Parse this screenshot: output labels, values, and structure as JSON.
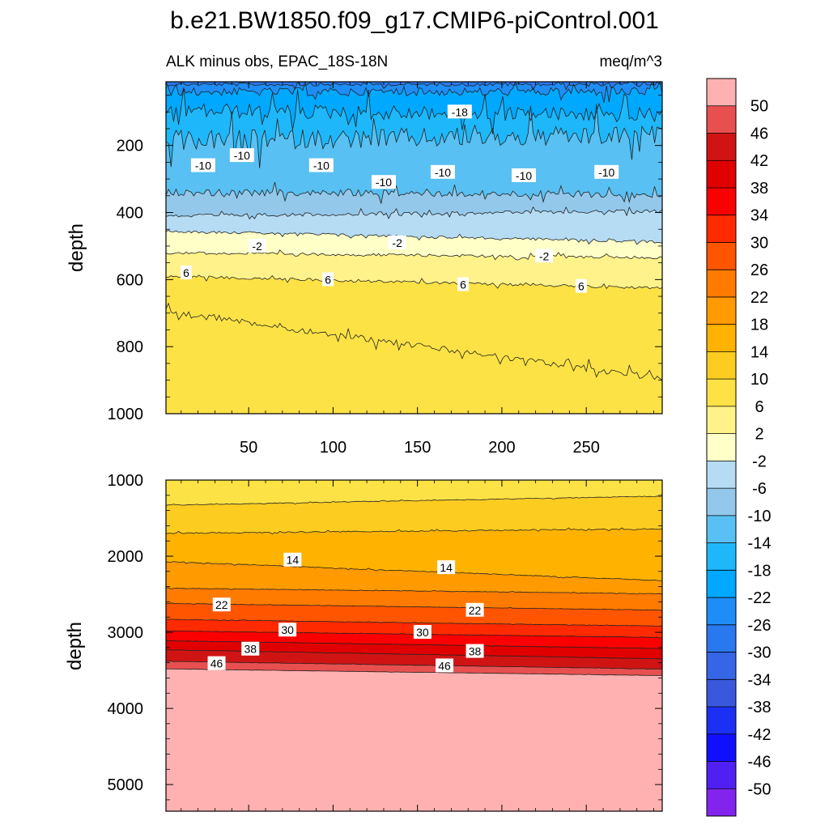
{
  "title": "b.e21.BW1850.f09_g17.CMIP6-piControl.001",
  "subtitle_left": "ALK minus obs, EPAC_18S-18N",
  "subtitle_right": "meq/m^3",
  "chart_data": [
    {
      "type": "heatmap",
      "panel": "upper",
      "ylabel": "depth",
      "xlim": [
        1,
        295
      ],
      "ylim": [
        1000,
        10
      ],
      "y_inverted": true,
      "xticks": [
        50,
        100,
        150,
        200,
        250
      ],
      "xticks_labeled": true,
      "yticks": [
        200,
        400,
        600,
        800,
        1000
      ],
      "contour_interval": 4,
      "contour_labels": [
        {
          "text": "-18",
          "x": 175,
          "y": 100
        },
        {
          "text": "-10",
          "x": 23,
          "y": 260
        },
        {
          "text": "-10",
          "x": 46,
          "y": 230
        },
        {
          "text": "-10",
          "x": 93,
          "y": 260
        },
        {
          "text": "-10",
          "x": 130,
          "y": 310
        },
        {
          "text": "-10",
          "x": 165,
          "y": 280
        },
        {
          "text": "-10",
          "x": 213,
          "y": 290
        },
        {
          "text": "-10",
          "x": 262,
          "y": 280
        },
        {
          "text": "-2",
          "x": 55,
          "y": 500
        },
        {
          "text": "-2",
          "x": 138,
          "y": 490
        },
        {
          "text": "-2",
          "x": 225,
          "y": 530
        },
        {
          "text": "6",
          "x": 13,
          "y": 580
        },
        {
          "text": "6",
          "x": 97,
          "y": 600
        },
        {
          "text": "6",
          "x": 177,
          "y": 615
        },
        {
          "text": "6",
          "x": 247,
          "y": 620
        }
      ]
    },
    {
      "type": "heatmap",
      "panel": "lower",
      "ylabel": "depth",
      "xlim": [
        1,
        295
      ],
      "ylim": [
        5350,
        1000
      ],
      "y_inverted": true,
      "xticks": [
        50,
        100,
        150,
        200,
        250
      ],
      "xticks_labeled": false,
      "yticks": [
        1000,
        2000,
        3000,
        4000,
        5000
      ],
      "contour_interval": 4,
      "contour_labels": [
        {
          "text": "14",
          "x": 76,
          "y": 2050
        },
        {
          "text": "14",
          "x": 167,
          "y": 2150
        },
        {
          "text": "22",
          "x": 34,
          "y": 2640
        },
        {
          "text": "22",
          "x": 184,
          "y": 2710
        },
        {
          "text": "30",
          "x": 73,
          "y": 2970
        },
        {
          "text": "30",
          "x": 153,
          "y": 3000
        },
        {
          "text": "38",
          "x": 51,
          "y": 3220
        },
        {
          "text": "38",
          "x": 184,
          "y": 3250
        },
        {
          "text": "46",
          "x": 31,
          "y": 3410
        },
        {
          "text": "46",
          "x": 166,
          "y": 3440
        }
      ]
    }
  ],
  "colorbar": {
    "labels": [
      "50",
      "46",
      "42",
      "38",
      "34",
      "30",
      "26",
      "22",
      "18",
      "14",
      "10",
      "6",
      "2",
      "-2",
      "-6",
      "-10",
      "-14",
      "-18",
      "-22",
      "-26",
      "-30",
      "-34",
      "-38",
      "-42",
      "-46",
      "-50"
    ],
    "colors": [
      "#ffb1b1",
      "#e85050",
      "#d01414",
      "#e00000",
      "#fa0000",
      "#ff2a00",
      "#ff5500",
      "#ff7b00",
      "#ff9a00",
      "#ffb300",
      "#fccc20",
      "#fde245",
      "#fff28a",
      "#ffffc8",
      "#b6dcf4",
      "#94c8ea",
      "#58c0f2",
      "#1eb8fa",
      "#00a8ff",
      "#1e8ef6",
      "#2a78ee",
      "#3666e6",
      "#3a58dc",
      "#1c30f4",
      "#1010ff",
      "#5020f2",
      "#8224ee"
    ]
  }
}
